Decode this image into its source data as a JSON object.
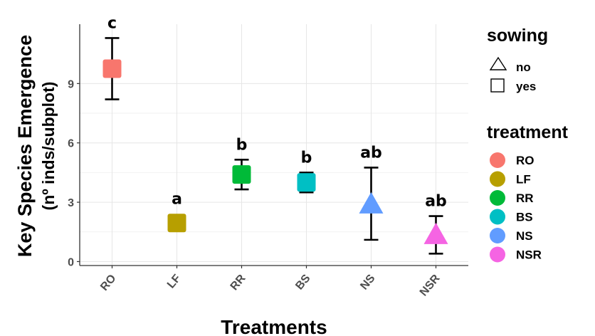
{
  "chart_data": {
    "type": "scatter",
    "title": "",
    "xlabel": "Treatments",
    "ylabel": "Key Species Emergence",
    "ylabel_line2": "(nº inds/subplot)",
    "categories": [
      "RO",
      "LF",
      "RR",
      "BS",
      "NS",
      "NSR"
    ],
    "yticks": [
      "0",
      "3",
      "6",
      "9"
    ],
    "ylim": [
      -0.2,
      12.0
    ],
    "grid": true,
    "legend_position": "right",
    "points": [
      {
        "category": "RO",
        "mean": 9.75,
        "low": 8.2,
        "high": 11.3,
        "letter": "c",
        "sowing": "yes",
        "color": "#F8766D"
      },
      {
        "category": "LF",
        "mean": 1.95,
        "low": 1.55,
        "high": 2.35,
        "letter": "a",
        "sowing": "yes",
        "color": "#B79F00"
      },
      {
        "category": "RR",
        "mean": 4.4,
        "low": 3.65,
        "high": 5.15,
        "letter": "b",
        "sowing": "yes",
        "color": "#00BA38"
      },
      {
        "category": "BS",
        "mean": 4.0,
        "low": 3.5,
        "high": 4.5,
        "letter": "b",
        "sowing": "yes",
        "color": "#00BFC4"
      },
      {
        "category": "NS",
        "mean": 2.9,
        "low": 1.1,
        "high": 4.75,
        "letter": "ab",
        "sowing": "no",
        "color": "#619CFF"
      },
      {
        "category": "NSR",
        "mean": 1.35,
        "low": 0.4,
        "high": 2.3,
        "letter": "ab",
        "sowing": "no",
        "color": "#F564E3"
      }
    ],
    "legends": {
      "sowing": {
        "title": "sowing",
        "entries": [
          {
            "label": "no",
            "shape": "triangle"
          },
          {
            "label": "yes",
            "shape": "square"
          }
        ]
      },
      "treatment": {
        "title": "treatment",
        "entries": [
          {
            "label": "RO",
            "color": "#F8766D"
          },
          {
            "label": "LF",
            "color": "#B79F00"
          },
          {
            "label": "RR",
            "color": "#00BA38"
          },
          {
            "label": "BS",
            "color": "#00BFC4"
          },
          {
            "label": "NS",
            "color": "#619CFF"
          },
          {
            "label": "NSR",
            "color": "#F564E3"
          }
        ]
      }
    }
  }
}
